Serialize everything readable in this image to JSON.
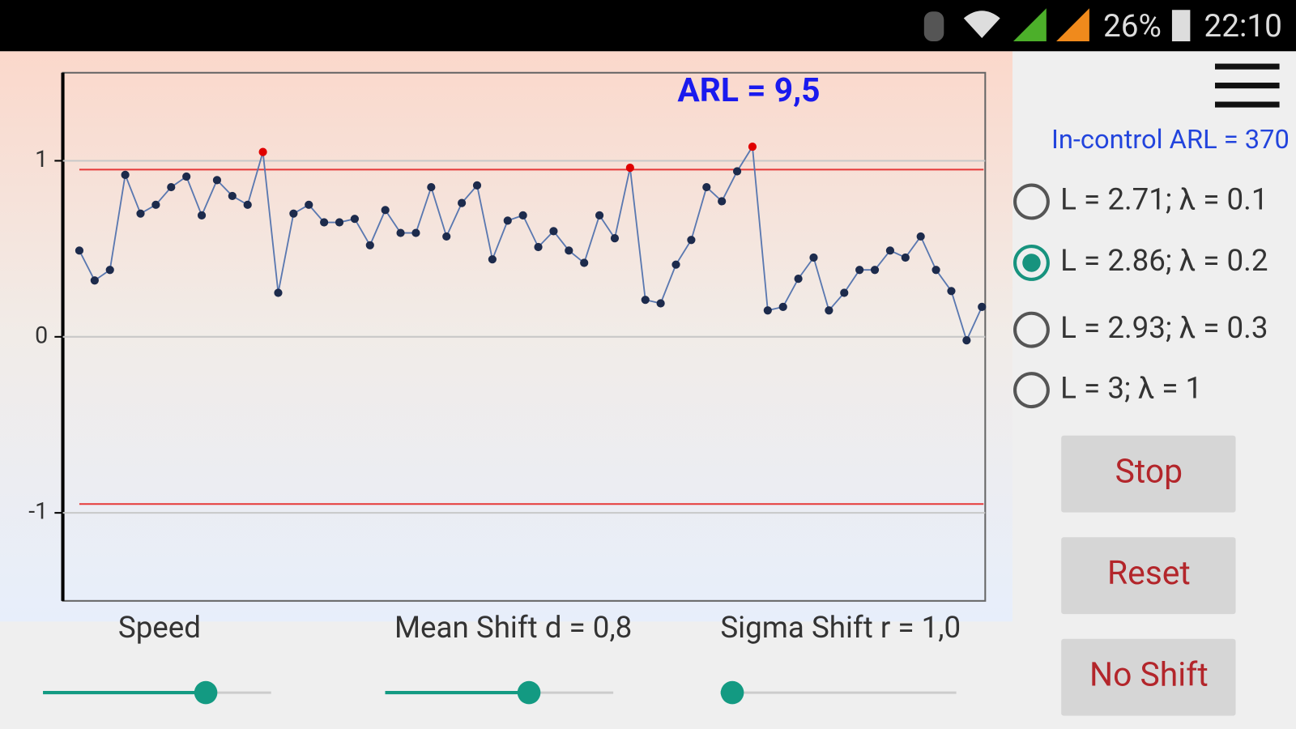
{
  "status_bar": {
    "battery": "26%",
    "time": "22:10"
  },
  "chart_data": {
    "type": "line",
    "annotation": "ARL = 9,5",
    "values": [
      0.49,
      0.32,
      0.38,
      0.92,
      0.7,
      0.75,
      0.85,
      0.91,
      0.69,
      0.89,
      0.8,
      0.75,
      1.05,
      0.25,
      0.7,
      0.75,
      0.65,
      0.65,
      0.67,
      0.52,
      0.72,
      0.59,
      0.59,
      0.85,
      0.57,
      0.76,
      0.86,
      0.44,
      0.66,
      0.69,
      0.51,
      0.6,
      0.49,
      0.42,
      0.69,
      0.56,
      0.96,
      0.21,
      0.19,
      0.41,
      0.55,
      0.85,
      0.77,
      0.94,
      1.08,
      0.15,
      0.17,
      0.33,
      0.45,
      0.15,
      0.25,
      0.38,
      0.38,
      0.49,
      0.45,
      0.57,
      0.38,
      0.26,
      -0.02,
      0.17
    ],
    "color": "#5a78b0",
    "marker_color": "#1d2b4c",
    "alarm_color": "#e00000",
    "control_limits": {
      "upper": 0.95,
      "lower": -0.95,
      "color": "#e53838"
    },
    "ylim": [
      -1.5,
      1.5
    ],
    "yticks": [
      -1,
      0,
      1
    ],
    "grid": true
  },
  "side_panel": {
    "in_control_arl": "In-control ARL = 370",
    "options": [
      "L = 2.71; λ = 0.1",
      "L = 2.86; λ = 0.2",
      "L = 2.93; λ = 0.3",
      "L = 3; λ = 1"
    ],
    "selected_option": 1,
    "buttons": [
      "Stop",
      "Reset",
      "No Shift"
    ]
  },
  "sliders": [
    {
      "label": "Speed"
    },
    {
      "label": "Mean Shift d = 0,8"
    },
    {
      "label": "Sigma Shift r = 1,0"
    }
  ]
}
